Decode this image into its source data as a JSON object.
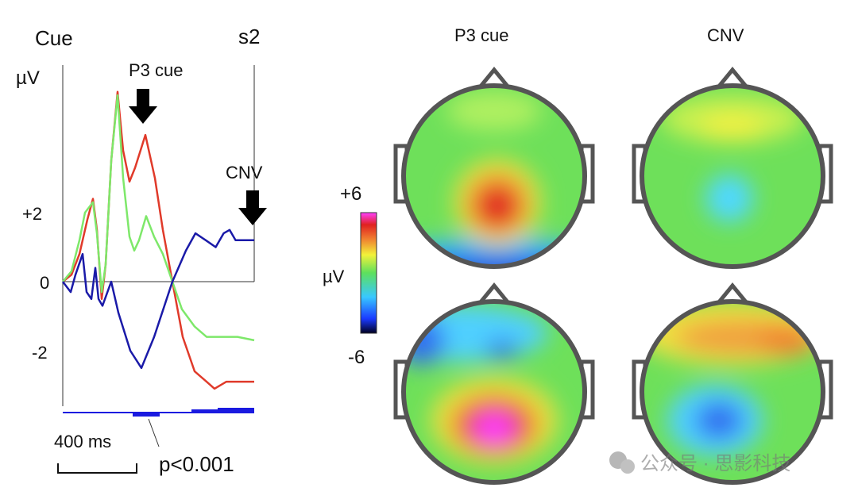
{
  "chart_data": [
    {
      "type": "line",
      "title": "Cue",
      "end_marker": "s2",
      "ylabel": "µV",
      "yticks": [
        "+2",
        "0",
        "-2"
      ],
      "ytick_values": [
        2,
        0,
        -2
      ],
      "ylim": [
        -3.6,
        6.3
      ],
      "xlim_ms": [
        0,
        964
      ],
      "scale_bar": "400 ms",
      "annotations": [
        "P3 cue",
        "CNV"
      ],
      "significance_label": "p<0.001",
      "series": [
        {
          "color": "#e03a2a",
          "points": [
            [
              0,
              0
            ],
            [
              44,
              0.2
            ],
            [
              84,
              0.8
            ],
            [
              124,
              1.8
            ],
            [
              152,
              2.4
            ],
            [
              172,
              1.5
            ],
            [
              196,
              -0.5
            ],
            [
              216,
              0.5
            ],
            [
              244,
              3.5
            ],
            [
              276,
              5.5
            ],
            [
              304,
              3.8
            ],
            [
              336,
              2.9
            ],
            [
              364,
              3.3
            ],
            [
              416,
              4.25
            ],
            [
              464,
              3.0
            ],
            [
              504,
              1.5
            ],
            [
              552,
              0
            ],
            [
              604,
              -1.6
            ],
            [
              664,
              -2.6
            ],
            [
              724,
              -2.9
            ],
            [
              764,
              -3.1
            ],
            [
              824,
              -2.9
            ],
            [
              964,
              -2.9
            ]
          ]
        },
        {
          "color": "#7ee86a",
          "points": [
            [
              0,
              0
            ],
            [
              44,
              0.3
            ],
            [
              84,
              1.2
            ],
            [
              112,
              2.0
            ],
            [
              152,
              2.3
            ],
            [
              172,
              1.4
            ],
            [
              196,
              -0.3
            ],
            [
              216,
              0.5
            ],
            [
              244,
              3.5
            ],
            [
              276,
              5.4
            ],
            [
              304,
              3.0
            ],
            [
              336,
              1.3
            ],
            [
              360,
              0.9
            ],
            [
              384,
              1.2
            ],
            [
              420,
              1.9
            ],
            [
              460,
              1.3
            ],
            [
              504,
              0.8
            ],
            [
              552,
              0
            ],
            [
              600,
              -0.8
            ],
            [
              664,
              -1.3
            ],
            [
              724,
              -1.6
            ],
            [
              800,
              -1.6
            ],
            [
              880,
              -1.6
            ],
            [
              964,
              -1.7
            ]
          ]
        },
        {
          "color": "#1a1aa8",
          "points": [
            [
              0,
              0
            ],
            [
              40,
              -0.3
            ],
            [
              64,
              0.2
            ],
            [
              100,
              0.8
            ],
            [
              120,
              -0.3
            ],
            [
              144,
              -0.5
            ],
            [
              164,
              0.4
            ],
            [
              180,
              -0.5
            ],
            [
              200,
              -0.7
            ],
            [
              244,
              0
            ],
            [
              280,
              -0.9
            ],
            [
              340,
              -2.0
            ],
            [
              396,
              -2.5
            ],
            [
              460,
              -1.6
            ],
            [
              552,
              0
            ],
            [
              620,
              0.9
            ],
            [
              668,
              1.4
            ],
            [
              720,
              1.2
            ],
            [
              770,
              1.0
            ],
            [
              810,
              1.4
            ],
            [
              840,
              1.5
            ],
            [
              870,
              1.2
            ],
            [
              920,
              1.2
            ],
            [
              964,
              1.2
            ]
          ]
        }
      ]
    },
    {
      "type": "heatmap",
      "columns": [
        "P3 cue",
        "CNV"
      ],
      "colorbar": {
        "max_label": "+6",
        "min_label": "-6",
        "unit": "µV",
        "colors": [
          "#000020",
          "#1a3aff",
          "#38c8ff",
          "#5de05d",
          "#f2f23a",
          "#f08030",
          "#e02020",
          "#ff40ff"
        ]
      }
    }
  ],
  "watermark": "公众号 · 思影科技"
}
